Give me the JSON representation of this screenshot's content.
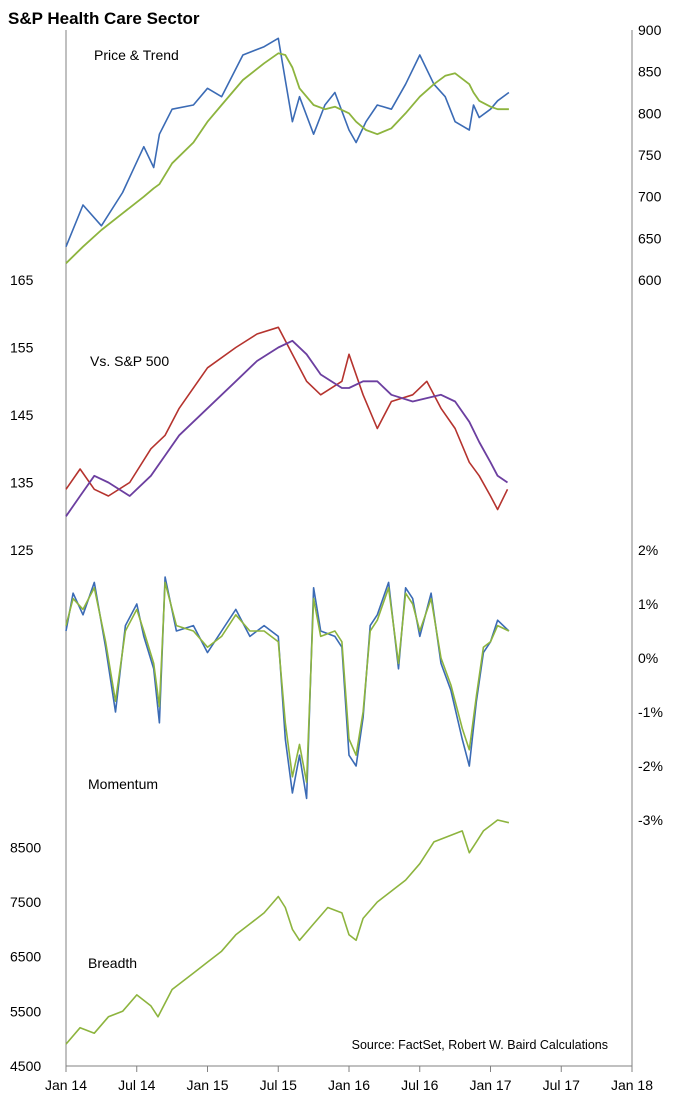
{
  "title": "S&P Health Care Sector",
  "source": "Source: FactSet, Robert W. Baird Calculations",
  "x_axis": {
    "ticks": [
      "Jan 14",
      "Jul 14",
      "Jan 15",
      "Jul 15",
      "Jan 16",
      "Jul 16",
      "Jan 17",
      "Jul 17",
      "Jan 18"
    ],
    "range": [
      "Jan 14",
      "Jan 18"
    ]
  },
  "colors": {
    "price": "#3b6bb5",
    "price_trend": "#8db43e",
    "relative": "#b5332e",
    "relative_trend": "#6c3fa0",
    "momentum_a": "#3b6bb5",
    "momentum_b": "#8db43e",
    "breadth": "#8db43e"
  },
  "chart_data": [
    {
      "panel": "price",
      "label": "Price & Trend",
      "type": "line",
      "axis_side": "right",
      "yticks": [
        "600",
        "650",
        "700",
        "750",
        "800",
        "850",
        "900"
      ],
      "ylim": [
        600,
        900
      ],
      "x": [
        2014.0,
        2014.12,
        2014.25,
        2014.4,
        2014.55,
        2014.62,
        2014.66,
        2014.75,
        2014.9,
        2015.0,
        2015.1,
        2015.25,
        2015.4,
        2015.5,
        2015.55,
        2015.6,
        2015.65,
        2015.75,
        2015.83,
        2015.9,
        2016.0,
        2016.05,
        2016.12,
        2016.2,
        2016.3,
        2016.4,
        2016.5,
        2016.6,
        2016.68,
        2016.75,
        2016.85,
        2016.88,
        2016.92,
        2017.0,
        2017.05,
        2017.13
      ],
      "series": [
        {
          "values": [
            640,
            690,
            665,
            705,
            760,
            735,
            775,
            805,
            810,
            830,
            820,
            870,
            880,
            890,
            840,
            790,
            820,
            775,
            810,
            825,
            780,
            765,
            790,
            810,
            805,
            835,
            870,
            835,
            820,
            790,
            780,
            810,
            795,
            805,
            815,
            825
          ]
        },
        {
          "values": [
            620,
            640,
            660,
            680,
            700,
            710,
            715,
            740,
            765,
            790,
            810,
            840,
            860,
            872,
            870,
            855,
            830,
            810,
            805,
            808,
            800,
            790,
            780,
            775,
            782,
            800,
            820,
            835,
            845,
            848,
            835,
            825,
            815,
            808,
            805,
            805
          ]
        }
      ]
    },
    {
      "panel": "relative",
      "label": "Vs. S&P 500",
      "type": "line",
      "axis_side": "left",
      "yticks": [
        "125",
        "135",
        "145",
        "155",
        "165"
      ],
      "ylim": [
        125,
        165
      ],
      "x": [
        2014.0,
        2014.1,
        2014.2,
        2014.3,
        2014.45,
        2014.6,
        2014.7,
        2014.8,
        2015.0,
        2015.2,
        2015.35,
        2015.5,
        2015.6,
        2015.7,
        2015.8,
        2015.95,
        2016.0,
        2016.1,
        2016.2,
        2016.3,
        2016.45,
        2016.55,
        2016.65,
        2016.75,
        2016.85,
        2016.92,
        2017.0,
        2017.05,
        2017.12
      ],
      "series": [
        {
          "values": [
            134,
            137,
            134,
            133,
            135,
            140,
            142,
            146,
            152,
            155,
            157,
            158,
            154,
            150,
            148,
            150,
            154,
            148,
            143,
            147,
            148,
            150,
            146,
            143,
            138,
            136,
            133,
            131,
            134
          ]
        },
        {
          "values": [
            130,
            133,
            136,
            135,
            133,
            136,
            139,
            142,
            146,
            150,
            153,
            155,
            156,
            154,
            151,
            149,
            149,
            150,
            150,
            148,
            147,
            147.5,
            148,
            147,
            144,
            141,
            138,
            136,
            135
          ]
        }
      ]
    },
    {
      "panel": "momentum",
      "label": "Momentum",
      "type": "line",
      "axis_side": "right",
      "yticks": [
        "-3%",
        "-2%",
        "-1%",
        "0%",
        "1%",
        "2%"
      ],
      "ylim": [
        -3,
        2
      ],
      "x": [
        2014.0,
        2014.05,
        2014.12,
        2014.2,
        2014.28,
        2014.35,
        2014.42,
        2014.5,
        2014.55,
        2014.62,
        2014.66,
        2014.7,
        2014.78,
        2014.9,
        2015.0,
        2015.1,
        2015.2,
        2015.3,
        2015.4,
        2015.5,
        2015.55,
        2015.6,
        2015.65,
        2015.7,
        2015.75,
        2015.8,
        2015.9,
        2015.95,
        2016.0,
        2016.05,
        2016.1,
        2016.15,
        2016.2,
        2016.28,
        2016.35,
        2016.4,
        2016.45,
        2016.5,
        2016.58,
        2016.65,
        2016.72,
        2016.8,
        2016.85,
        2016.9,
        2016.95,
        2017.0,
        2017.05,
        2017.13
      ],
      "series": [
        {
          "values": [
            0.5,
            1.2,
            0.8,
            1.4,
            0.2,
            -1.0,
            0.6,
            1.0,
            0.4,
            -0.2,
            -1.2,
            1.5,
            0.5,
            0.6,
            0.1,
            0.5,
            0.9,
            0.4,
            0.6,
            0.4,
            -1.5,
            -2.5,
            -1.8,
            -2.6,
            1.3,
            0.5,
            0.4,
            0.2,
            -1.8,
            -2.0,
            -1.1,
            0.6,
            0.8,
            1.4,
            -0.2,
            1.3,
            1.1,
            0.4,
            1.2,
            -0.1,
            -0.6,
            -1.5,
            -2.0,
            -0.8,
            0.1,
            0.3,
            0.7,
            0.5
          ]
        },
        {
          "values": [
            0.6,
            1.1,
            0.9,
            1.3,
            0.3,
            -0.8,
            0.5,
            0.9,
            0.5,
            -0.1,
            -0.9,
            1.4,
            0.6,
            0.5,
            0.2,
            0.4,
            0.8,
            0.5,
            0.5,
            0.3,
            -1.2,
            -2.2,
            -1.6,
            -2.3,
            1.1,
            0.4,
            0.5,
            0.3,
            -1.5,
            -1.8,
            -1.0,
            0.5,
            0.7,
            1.3,
            -0.1,
            1.2,
            1.0,
            0.5,
            1.1,
            0.0,
            -0.5,
            -1.3,
            -1.7,
            -0.7,
            0.2,
            0.3,
            0.6,
            0.5
          ]
        }
      ]
    },
    {
      "panel": "breadth",
      "label": "Breadth",
      "type": "line",
      "axis_side": "left",
      "yticks": [
        "4500",
        "5500",
        "6500",
        "7500",
        "8500"
      ],
      "ylim": [
        4500,
        9000
      ],
      "x": [
        2014.0,
        2014.1,
        2014.2,
        2014.3,
        2014.4,
        2014.5,
        2014.6,
        2014.65,
        2014.75,
        2014.9,
        2015.0,
        2015.1,
        2015.2,
        2015.3,
        2015.4,
        2015.5,
        2015.55,
        2015.6,
        2015.65,
        2015.75,
        2015.85,
        2015.95,
        2016.0,
        2016.05,
        2016.1,
        2016.2,
        2016.3,
        2016.4,
        2016.5,
        2016.6,
        2016.7,
        2016.8,
        2016.85,
        2016.9,
        2016.95,
        2017.0,
        2017.05,
        2017.13
      ],
      "series": [
        {
          "values": [
            4900,
            5200,
            5100,
            5400,
            5500,
            5800,
            5600,
            5400,
            5900,
            6200,
            6400,
            6600,
            6900,
            7100,
            7300,
            7600,
            7400,
            7000,
            6800,
            7100,
            7400,
            7300,
            6900,
            6800,
            7200,
            7500,
            7700,
            7900,
            8200,
            8600,
            8700,
            8800,
            8400,
            8600,
            8800,
            8900,
            9000,
            8950
          ]
        }
      ]
    }
  ]
}
